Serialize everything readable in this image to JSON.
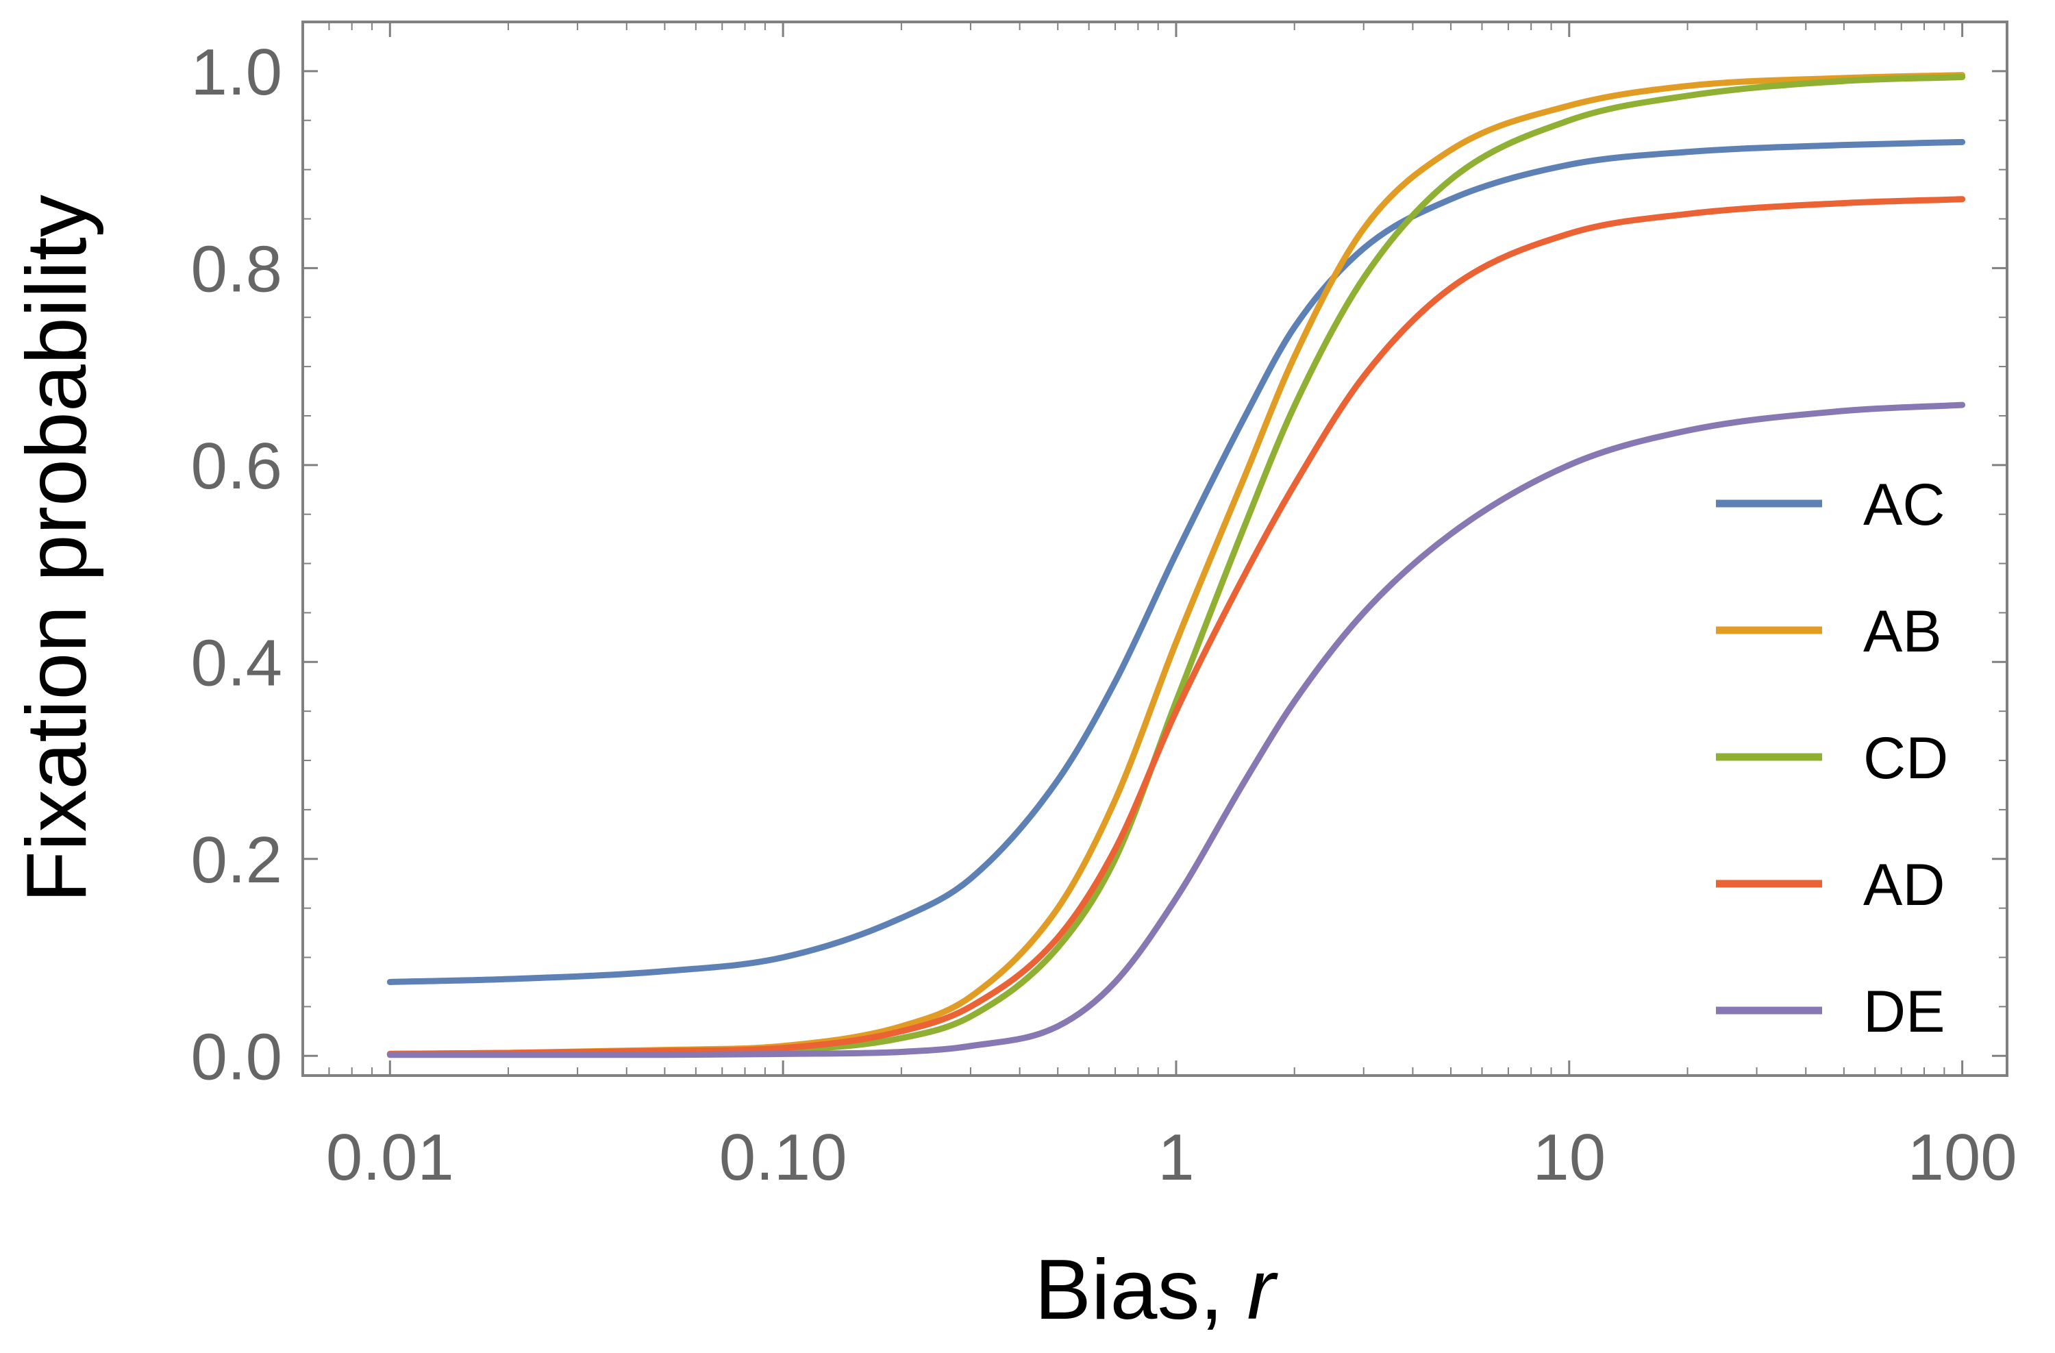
{
  "chart_data": {
    "type": "line",
    "xlabel": "Bias, ",
    "xlabel_var": "r",
    "ylabel": "Fixation probability",
    "xscale": "log",
    "xlim": [
      0.006,
      130
    ],
    "ylim": [
      -0.02,
      1.05
    ],
    "x_ticks": [
      {
        "value": 0.01,
        "label": "0.01"
      },
      {
        "value": 0.1,
        "label": "0.10"
      },
      {
        "value": 1,
        "label": "1"
      },
      {
        "value": 10,
        "label": "10"
      },
      {
        "value": 100,
        "label": "100"
      }
    ],
    "y_ticks": [
      {
        "value": 0.0,
        "label": "0.0"
      },
      {
        "value": 0.2,
        "label": "0.2"
      },
      {
        "value": 0.4,
        "label": "0.4"
      },
      {
        "value": 0.6,
        "label": "0.6"
      },
      {
        "value": 0.8,
        "label": "0.8"
      },
      {
        "value": 1.0,
        "label": "1.0"
      }
    ],
    "x": [
      0.01,
      0.02,
      0.05,
      0.1,
      0.2,
      0.3,
      0.5,
      0.7,
      1,
      1.5,
      2,
      3,
      5,
      10,
      20,
      50,
      100
    ],
    "legend_position": "right",
    "series": [
      {
        "name": "AC",
        "color": "#5e81b5",
        "values": [
          0.075,
          0.078,
          0.086,
          0.1,
          0.14,
          0.18,
          0.28,
          0.38,
          0.51,
          0.65,
          0.74,
          0.82,
          0.87,
          0.905,
          0.918,
          0.925,
          0.928
        ]
      },
      {
        "name": "AB",
        "color": "#e19c24",
        "values": [
          0.002,
          0.003,
          0.006,
          0.01,
          0.03,
          0.06,
          0.15,
          0.26,
          0.42,
          0.59,
          0.71,
          0.84,
          0.92,
          0.965,
          0.985,
          0.993,
          0.996
        ]
      },
      {
        "name": "CD",
        "color": "#8fb032",
        "values": [
          0.002,
          0.002,
          0.004,
          0.006,
          0.018,
          0.04,
          0.11,
          0.2,
          0.36,
          0.54,
          0.66,
          0.79,
          0.89,
          0.95,
          0.975,
          0.99,
          0.994
        ]
      },
      {
        "name": "AD",
        "color": "#eb6235",
        "values": [
          0.002,
          0.003,
          0.005,
          0.008,
          0.025,
          0.05,
          0.12,
          0.21,
          0.35,
          0.49,
          0.58,
          0.69,
          0.78,
          0.835,
          0.855,
          0.866,
          0.87
        ]
      },
      {
        "name": "DE",
        "color": "#8778b3",
        "values": [
          0.001,
          0.001,
          0.001,
          0.002,
          0.004,
          0.01,
          0.03,
          0.075,
          0.16,
          0.28,
          0.36,
          0.45,
          0.53,
          0.6,
          0.635,
          0.655,
          0.661
        ]
      }
    ]
  }
}
